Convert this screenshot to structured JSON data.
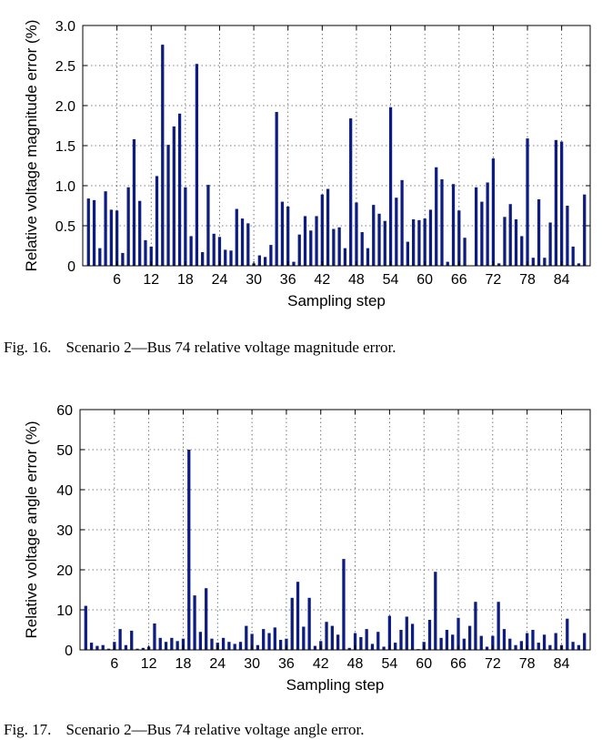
{
  "chart_data": [
    {
      "type": "bar",
      "ylabel": "Relative voltage magnitude error (%)",
      "xlabel": "Sampling step",
      "ylim": [
        0,
        3.0
      ],
      "xlim": [
        0,
        89
      ],
      "grid": true,
      "xticks": [
        6,
        12,
        18,
        24,
        30,
        36,
        42,
        48,
        54,
        60,
        66,
        72,
        78,
        84
      ],
      "yticks": [
        0,
        0.5,
        1.0,
        1.5,
        2.0,
        2.5,
        3.0
      ],
      "ytick_labels": [
        "0",
        "0.5",
        "1.0",
        "1.5",
        "2.0",
        "2.5",
        "3.0"
      ],
      "x": [
        1,
        2,
        3,
        4,
        5,
        6,
        7,
        8,
        9,
        10,
        11,
        12,
        13,
        14,
        15,
        16,
        17,
        18,
        19,
        20,
        21,
        22,
        23,
        24,
        25,
        26,
        27,
        28,
        29,
        30,
        31,
        32,
        33,
        34,
        35,
        36,
        37,
        38,
        39,
        40,
        41,
        42,
        43,
        44,
        45,
        46,
        47,
        48,
        49,
        50,
        51,
        52,
        53,
        54,
        55,
        56,
        57,
        58,
        59,
        60,
        61,
        62,
        63,
        64,
        65,
        66,
        67,
        68,
        69,
        70,
        71,
        72,
        73,
        74,
        75,
        76,
        77,
        78,
        79,
        80,
        81,
        82,
        83,
        84,
        85,
        86,
        87,
        88,
        89
      ],
      "values": [
        0.84,
        0.82,
        0.22,
        0.93,
        0.7,
        0.69,
        0.16,
        0.98,
        1.58,
        0.81,
        0.32,
        0.24,
        1.12,
        2.76,
        1.51,
        1.74,
        1.9,
        0.98,
        0.37,
        2.52,
        0.17,
        1.01,
        0.4,
        0.36,
        0.2,
        0.19,
        0.71,
        0.59,
        0.53,
        0.03,
        0.13,
        0.11,
        0.26,
        1.92,
        0.8,
        0.74,
        0.05,
        0.39,
        0.62,
        0.44,
        0.62,
        0.89,
        0.96,
        0.46,
        0.48,
        0.22,
        1.84,
        0.79,
        0.42,
        0.22,
        0.76,
        0.65,
        0.56,
        1.98,
        0.85,
        1.07,
        0.3,
        0.58,
        0.57,
        0.59,
        0.7,
        1.23,
        1.08,
        0.05,
        1.02,
        0.69,
        0.35,
        0.0,
        0.98,
        0.8,
        1.04,
        1.34,
        0.03,
        0.61,
        0.77,
        0.58,
        0.37,
        1.59,
        0.1,
        0.83,
        0.1,
        0.54,
        1.57,
        1.55,
        0.75,
        0.24,
        0.03,
        0.89,
        0.0
      ],
      "caption_number": "Fig. 16.",
      "caption_text": "Scenario 2—Bus 74 relative voltage magnitude error.",
      "bar_color": "#0d1c80"
    },
    {
      "type": "bar",
      "ylabel": "Relative voltage angle error (%)",
      "xlabel": "Sampling step",
      "ylim": [
        0,
        60
      ],
      "xlim": [
        0,
        89
      ],
      "grid": true,
      "xticks": [
        6,
        12,
        18,
        24,
        30,
        36,
        42,
        48,
        54,
        60,
        66,
        72,
        78,
        84
      ],
      "yticks": [
        0,
        10,
        20,
        30,
        40,
        50,
        60
      ],
      "ytick_labels": [
        "0",
        "10",
        "20",
        "30",
        "40",
        "50",
        "60"
      ],
      "x": [
        1,
        2,
        3,
        4,
        5,
        6,
        7,
        8,
        9,
        10,
        11,
        12,
        13,
        14,
        15,
        16,
        17,
        18,
        19,
        20,
        21,
        22,
        23,
        24,
        25,
        26,
        27,
        28,
        29,
        30,
        31,
        32,
        33,
        34,
        35,
        36,
        37,
        38,
        39,
        40,
        41,
        42,
        43,
        44,
        45,
        46,
        47,
        48,
        49,
        50,
        51,
        52,
        53,
        54,
        55,
        56,
        57,
        58,
        59,
        60,
        61,
        62,
        63,
        64,
        65,
        66,
        67,
        68,
        69,
        70,
        71,
        72,
        73,
        74,
        75,
        76,
        77,
        78,
        79,
        80,
        81,
        82,
        83,
        84,
        85,
        86,
        87,
        88,
        89
      ],
      "values": [
        11.0,
        1.8,
        1.0,
        1.2,
        0.3,
        2.0,
        5.2,
        1.2,
        4.8,
        0.3,
        0.5,
        0.8,
        6.6,
        3.0,
        2.0,
        3.0,
        2.2,
        2.8,
        50.0,
        13.6,
        4.5,
        15.4,
        2.8,
        1.8,
        3.0,
        2.0,
        1.5,
        2.0,
        6.0,
        4.0,
        1.2,
        5.2,
        4.2,
        5.6,
        2.5,
        2.8,
        13.0,
        17.0,
        5.8,
        13.0,
        1.0,
        2.2,
        7.0,
        6.0,
        3.8,
        22.7,
        0.5,
        4.2,
        3.2,
        5.2,
        1.5,
        4.5,
        0.8,
        8.5,
        1.8,
        5.0,
        8.3,
        6.5,
        0.2,
        2.0,
        7.5,
        19.5,
        3.0,
        5.0,
        3.8,
        8.0,
        2.8,
        6.0,
        12.0,
        3.5,
        0.8,
        3.5,
        12.0,
        5.2,
        2.8,
        1.2,
        2.2,
        4.2,
        5.0,
        1.8,
        3.8,
        1.2,
        4.2,
        1.2,
        7.8,
        2.0,
        1.2,
        4.2,
        0.0
      ],
      "caption_number": "Fig. 17.",
      "caption_text": "Scenario 2—Bus 74 relative voltage angle error.",
      "bar_color": "#0d1c80"
    }
  ]
}
